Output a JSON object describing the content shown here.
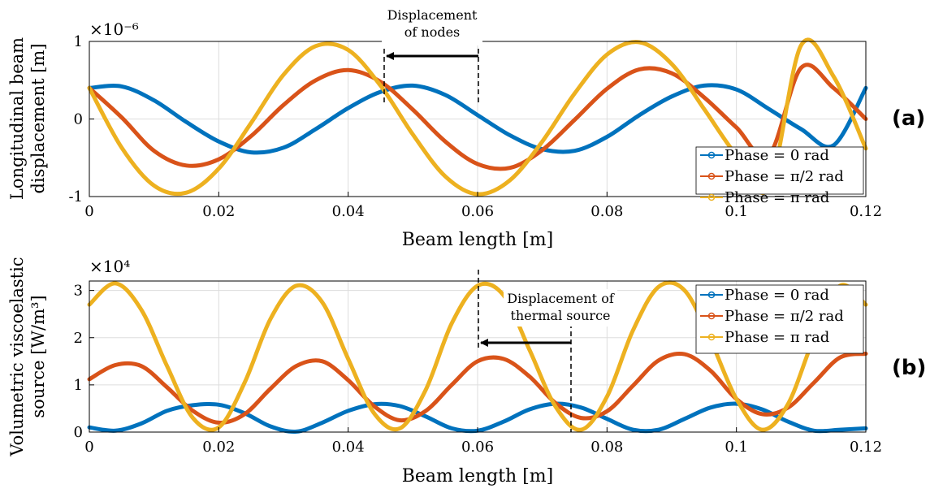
{
  "panels": [
    {
      "panel_label": "(a)",
      "multiplier": "×10⁻⁶",
      "ylabel_lines": [
        "Longitudinal beam",
        "displacement [m]"
      ],
      "xlabel": "Beam length [m]",
      "annotation": {
        "lines": [
          "Displacement",
          "of nodes"
        ]
      },
      "legend": [
        "Phase = 0 rad",
        "Phase = π/2 rad",
        "Phase = π rad"
      ]
    },
    {
      "panel_label": "(b)",
      "multiplier": "×10⁴",
      "ylabel_lines": [
        "Volumetric viscoelastic",
        "source [W/m³]"
      ],
      "xlabel": "Beam length [m]",
      "annotation": {
        "lines": [
          "Displacement of",
          "thermal source"
        ]
      },
      "legend": [
        "Phase = 0 rad",
        "Phase = π/2 rad",
        "Phase = π rad"
      ]
    }
  ],
  "colors": {
    "series": [
      "#0072BD",
      "#D95319",
      "#EDB120"
    ],
    "grid": "#dddddd",
    "axis": "#000000"
  },
  "chart_data": [
    {
      "type": "line",
      "xlabel": "Beam length [m]",
      "ylabel": "Longitudinal beam displacement [m]",
      "xlim": [
        0,
        0.12
      ],
      "ylim": [
        -1,
        1
      ],
      "y_multiplier": "×10⁻⁶",
      "xticks": [
        0,
        0.02,
        0.04,
        0.06,
        0.08,
        0.1,
        0.12
      ],
      "xticklabels": [
        "0",
        "0.02",
        "0.04",
        "0.06",
        "0.08",
        "0.1",
        "0.12"
      ],
      "yticks": [
        -1,
        0,
        1
      ],
      "yticklabels": [
        "-1",
        "0",
        "1"
      ],
      "grid": true,
      "legend_position": "lower-right",
      "x": [
        0,
        0.005,
        0.01,
        0.015,
        0.02,
        0.025,
        0.03,
        0.035,
        0.04,
        0.045,
        0.05,
        0.055,
        0.06,
        0.065,
        0.07,
        0.075,
        0.08,
        0.085,
        0.09,
        0.095,
        0.1,
        0.105,
        0.11,
        0.115,
        0.12
      ],
      "series": [
        {
          "name": "Phase = 0 rad",
          "values": [
            0.4,
            0.42,
            0.24,
            -0.04,
            -0.29,
            -0.43,
            -0.37,
            -0.13,
            0.14,
            0.35,
            0.43,
            0.31,
            0.05,
            -0.21,
            -0.39,
            -0.41,
            -0.23,
            0.05,
            0.29,
            0.43,
            0.38,
            0.13,
            -0.13,
            -0.34,
            0.4
          ]
        },
        {
          "name": "Phase = π/2 rad",
          "values": [
            0.4,
            0.02,
            -0.41,
            -0.6,
            -0.52,
            -0.22,
            0.18,
            0.5,
            0.63,
            0.48,
            0.12,
            -0.29,
            -0.58,
            -0.63,
            -0.4,
            -0.01,
            0.39,
            0.64,
            0.59,
            0.28,
            -0.11,
            -0.47,
            0.66,
            0.4,
            0
          ]
        },
        {
          "name": "Phase = π rad",
          "values": [
            0.4,
            -0.37,
            -0.86,
            -0.95,
            -0.64,
            -0.05,
            0.57,
            0.94,
            0.89,
            0.43,
            -0.2,
            -0.74,
            -0.97,
            -0.79,
            -0.29,
            0.33,
            0.83,
            0.99,
            0.71,
            0.13,
            -0.47,
            -0.89,
            0.95,
            0.55,
            -0.38
          ]
        }
      ]
    },
    {
      "type": "line",
      "xlabel": "Beam length [m]",
      "ylabel": "Volumetric viscoelastic source [W/m³]",
      "xlim": [
        0,
        0.12
      ],
      "ylim": [
        0,
        3.2
      ],
      "y_multiplier": "×10⁴",
      "xticks": [
        0,
        0.02,
        0.04,
        0.06,
        0.08,
        0.1,
        0.12
      ],
      "xticklabels": [
        "0",
        "0.02",
        "0.04",
        "0.06",
        "0.08",
        "0.1",
        "0.12"
      ],
      "yticks": [
        0,
        1,
        2,
        3
      ],
      "yticklabels": [
        "0",
        "1",
        "2",
        "3"
      ],
      "grid": true,
      "legend_position": "top-right",
      "x": [
        0,
        0.004,
        0.008,
        0.012,
        0.016,
        0.02,
        0.024,
        0.028,
        0.032,
        0.036,
        0.04,
        0.044,
        0.048,
        0.052,
        0.056,
        0.06,
        0.064,
        0.068,
        0.072,
        0.076,
        0.08,
        0.084,
        0.088,
        0.092,
        0.096,
        0.1,
        0.104,
        0.108,
        0.112,
        0.116,
        0.12
      ],
      "series": [
        {
          "name": "Phase = 0 rad",
          "values": [
            0.1,
            0.03,
            0.18,
            0.45,
            0.57,
            0.58,
            0.4,
            0.12,
            0.01,
            0.2,
            0.45,
            0.59,
            0.55,
            0.33,
            0.08,
            0.03,
            0.22,
            0.48,
            0.6,
            0.52,
            0.28,
            0.05,
            0.05,
            0.28,
            0.52,
            0.6,
            0.48,
            0.22,
            0.03,
            0.05,
            0.08
          ]
        },
        {
          "name": "Phase = π/2 rad",
          "values": [
            1.12,
            1.42,
            1.4,
            0.95,
            0.45,
            0.2,
            0.38,
            0.92,
            1.4,
            1.5,
            1.1,
            0.55,
            0.25,
            0.45,
            1.0,
            1.5,
            1.55,
            1.18,
            0.62,
            0.3,
            0.44,
            0.98,
            1.52,
            1.65,
            1.3,
            0.7,
            0.38,
            0.52,
            1.05,
            1.58,
            1.66
          ]
        },
        {
          "name": "Phase = π rad",
          "values": [
            2.7,
            3.15,
            2.6,
            1.4,
            0.3,
            0.1,
            1.05,
            2.4,
            3.1,
            2.75,
            1.55,
            0.4,
            0.08,
            0.9,
            2.3,
            3.1,
            2.9,
            1.75,
            0.55,
            0.05,
            0.75,
            2.15,
            3.08,
            3.0,
            1.95,
            0.7,
            0.05,
            0.6,
            2.0,
            3.1,
            2.7
          ]
        }
      ]
    }
  ]
}
